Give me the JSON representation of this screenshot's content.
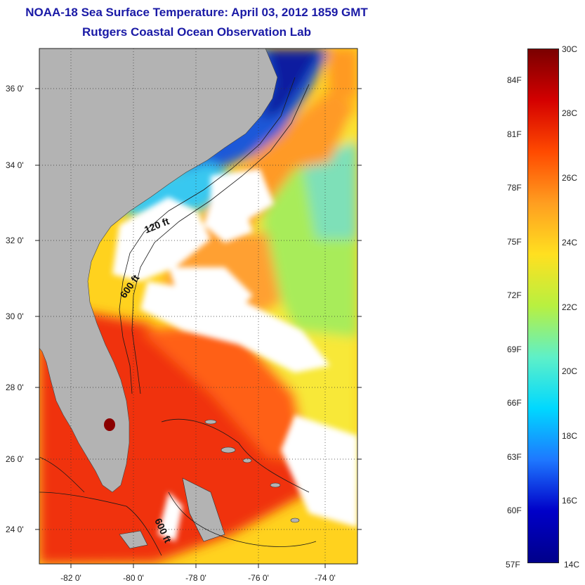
{
  "header": {
    "title": "NOAA-18 Sea Surface Temperature:  April 03, 2012 1859 GMT",
    "subtitle": "Rutgers Coastal Ocean Observation Lab"
  },
  "map": {
    "lon_ticks": [
      "-82 0'",
      "-80 0'",
      "-78 0'",
      "-76 0'",
      "-74 0'"
    ],
    "lat_ticks": [
      "36 0'",
      "34 0'",
      "32 0'",
      "30 0'",
      "28 0'",
      "26 0'",
      "24 0'"
    ],
    "isobath_labels": [
      "120 ft",
      "600 ft",
      "600 ft"
    ],
    "colors": {
      "land": "#b3b3b3",
      "cloud": "#ffffff",
      "frame": "#222222"
    }
  },
  "colorbar": {
    "celsius": [
      "30C",
      "28C",
      "26C",
      "24C",
      "22C",
      "20C",
      "18C",
      "16C",
      "14C"
    ],
    "fahrenheit": [
      "84F",
      "81F",
      "78F",
      "75F",
      "72F",
      "69F",
      "66F",
      "63F",
      "60F",
      "57F"
    ],
    "colors": [
      "#7a0000",
      "#d40000",
      "#ff4a00",
      "#ff9e20",
      "#ffe020",
      "#b8f040",
      "#5ef0c8",
      "#00d8ff",
      "#1e78ff",
      "#0000c8",
      "#00008a"
    ]
  }
}
